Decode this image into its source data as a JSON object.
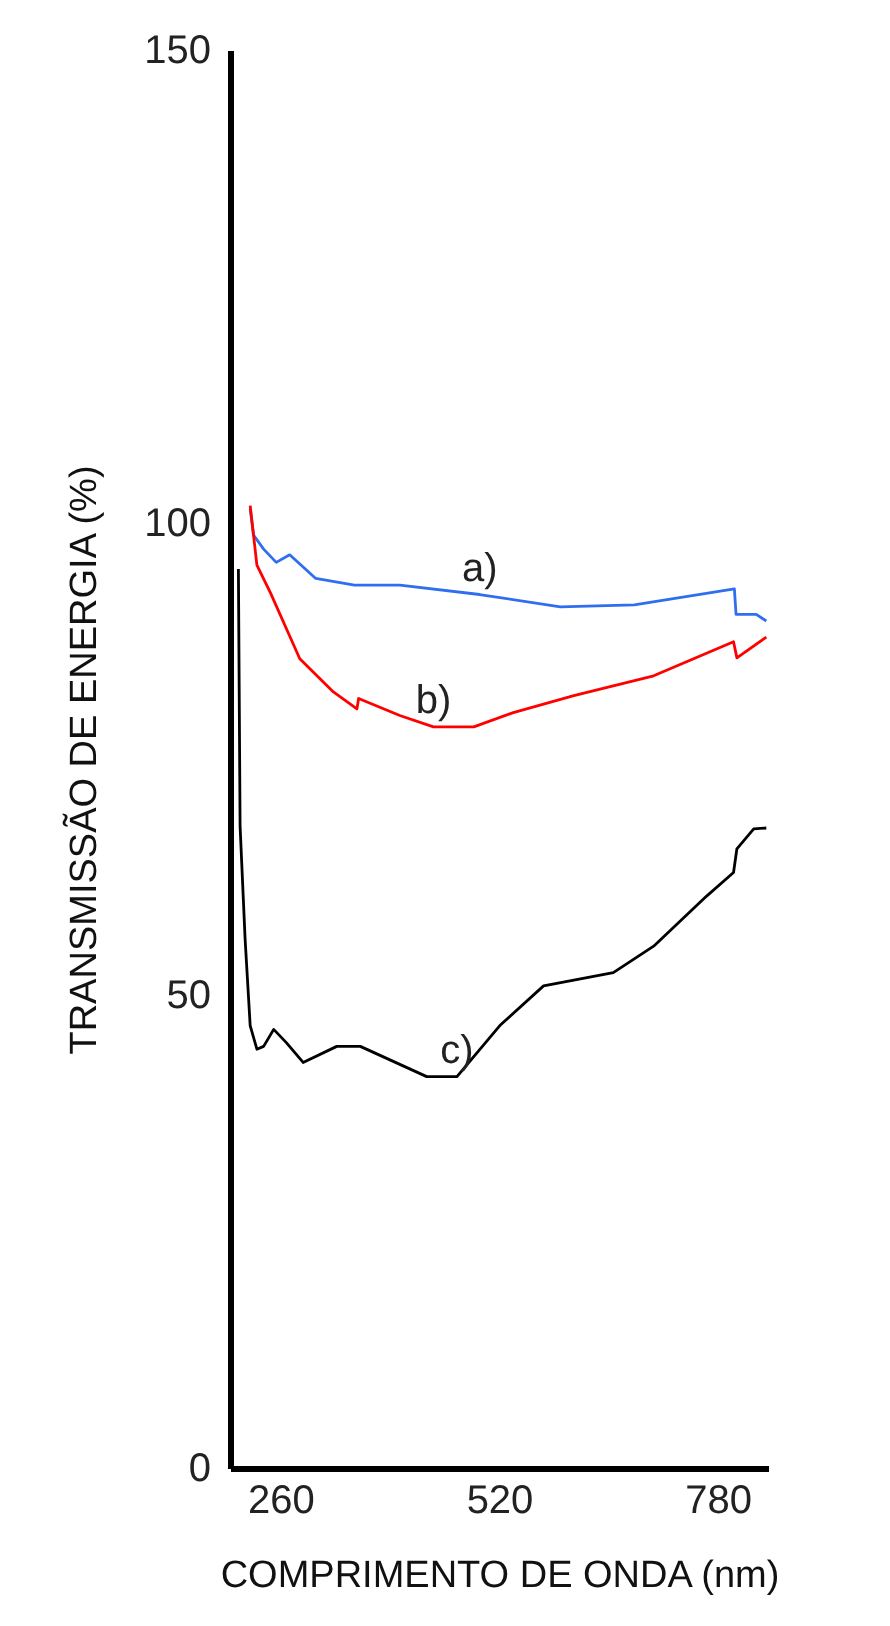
{
  "chart_data": {
    "type": "line",
    "xlabel": "COMPRIMENTO DE ONDA (nm)",
    "ylabel": "TRANSMISSÃO DE ENERGIA (%)",
    "xlim": [
      200,
      840
    ],
    "ylim": [
      0,
      150
    ],
    "xticks": [
      260,
      520,
      780
    ],
    "yticks": [
      0,
      50,
      100,
      150
    ],
    "grid": false,
    "series": [
      {
        "name": "a)",
        "color": "#2f6fef",
        "x": [
          224,
          228,
          240,
          255,
          271,
          302,
          348,
          402,
          497,
          593,
          681,
          800,
          802,
          826,
          838
        ],
        "values": [
          101.5,
          98.7,
          97.2,
          95.8,
          96.6,
          94.1,
          93.4,
          93.4,
          92.4,
          91.1,
          91.3,
          93.0,
          90.3,
          90.3,
          89.6
        ]
      },
      {
        "name": "b)",
        "color": "#ff0000",
        "x": [
          224,
          232,
          248,
          283,
          323,
          351,
          353,
          402,
          442,
          490,
          537,
          609,
          704,
          799,
          803,
          838
        ],
        "values": [
          101.8,
          95.5,
          92.6,
          85.6,
          82.1,
          80.3,
          81.4,
          79.6,
          78.4,
          78.4,
          79.9,
          81.7,
          83.8,
          87.4,
          85.7,
          87.9
        ]
      },
      {
        "name": "c)",
        "color": "#000000",
        "x": [
          210,
          212,
          218,
          224,
          232,
          240,
          252,
          267,
          287,
          327,
          355,
          434,
          470,
          521,
          573,
          656,
          704,
          767,
          799,
          803,
          823,
          838
        ],
        "values": [
          95.1,
          67.9,
          55.9,
          46.8,
          44.3,
          44.6,
          46.4,
          45.0,
          42.9,
          44.6,
          44.6,
          41.4,
          41.4,
          46.8,
          51.0,
          52.4,
          55.2,
          60.5,
          63.0,
          65.5,
          67.6,
          67.7
        ]
      }
    ]
  }
}
